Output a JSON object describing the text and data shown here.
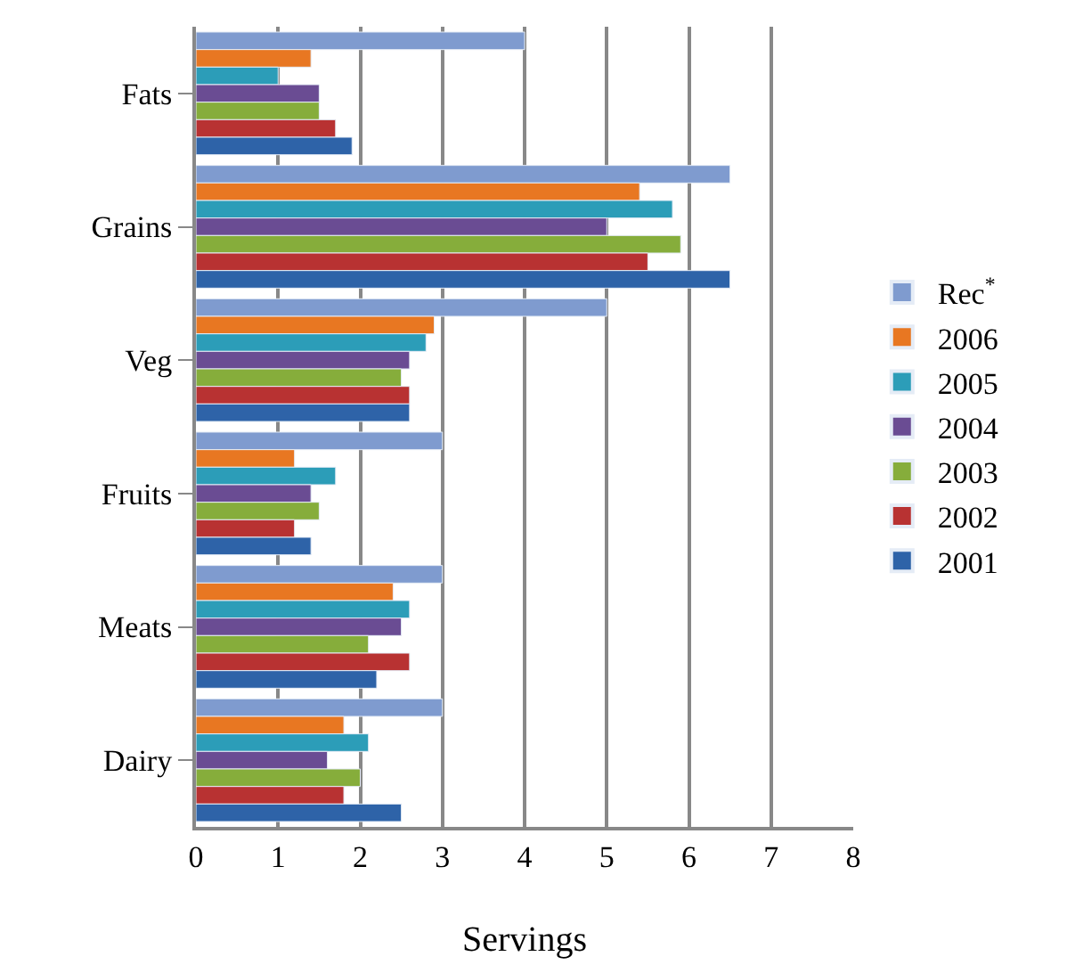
{
  "chart_data": {
    "type": "bar",
    "orientation": "horizontal",
    "xlabel": "Servings",
    "categories": [
      "Fats",
      "Grains",
      "Veg",
      "Fruits",
      "Meats",
      "Dairy"
    ],
    "series": [
      {
        "name": "Rec$^{*}$",
        "color": "#7f9bcf",
        "values": [
          4,
          6.5,
          5,
          3,
          3,
          3
        ]
      },
      {
        "name": "2006",
        "color": "#e87722",
        "values": [
          1.4,
          5.4,
          2.9,
          1.2,
          2.4,
          1.8
        ]
      },
      {
        "name": "2005",
        "color": "#2c9db8",
        "values": [
          1.0,
          5.8,
          2.8,
          1.7,
          2.6,
          2.1
        ]
      },
      {
        "name": "2004",
        "color": "#6a4c93",
        "values": [
          1.5,
          5.0,
          2.6,
          1.4,
          2.5,
          1.6
        ]
      },
      {
        "name": "2003",
        "color": "#86ad3b",
        "values": [
          1.5,
          5.9,
          2.5,
          1.5,
          2.1,
          2.0
        ]
      },
      {
        "name": "2002",
        "color": "#b83232",
        "values": [
          1.7,
          5.5,
          2.6,
          1.2,
          2.6,
          1.8
        ]
      },
      {
        "name": "2001",
        "color": "#2e63a8",
        "values": [
          1.9,
          6.5,
          2.6,
          1.4,
          2.2,
          2.5
        ]
      }
    ],
    "xlim": [
      0,
      8
    ],
    "xticks": [
      0,
      1,
      2,
      3,
      4,
      5,
      6,
      7,
      8
    ],
    "grid": "x",
    "legend": "right"
  }
}
